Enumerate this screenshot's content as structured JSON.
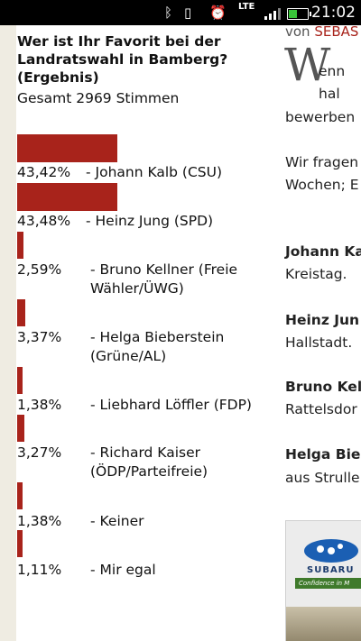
{
  "status_bar": {
    "time": "21:02",
    "network": "LTE",
    "icons": [
      "bluetooth-icon",
      "vibrate-icon",
      "alarm-icon",
      "lte-icon",
      "signal-icon",
      "battery-icon"
    ],
    "battery_color": "#3ac43a"
  },
  "poll": {
    "title": "Wer ist Ihr Favorit bei der Landratswahl in Bamberg? (Ergebnis)",
    "total": "Gesamt 2969 Stimmen",
    "bar_color": "#a8231b",
    "entries": [
      {
        "pct_text": "43,42%",
        "name": "- Johann Kalb (CSU)",
        "value": 43.42
      },
      {
        "pct_text": "43,48%",
        "name": "- Heinz Jung (SPD)",
        "value": 43.48
      },
      {
        "pct_text": "2,59%",
        "name": "- Bruno Kellner (Freie Wähler/ÜWG)",
        "value": 2.59
      },
      {
        "pct_text": "3,37%",
        "name": "- Helga Bieberstein (Grüne/AL)",
        "value": 3.37
      },
      {
        "pct_text": "1,38%",
        "name": "- Liebhard Löffler (FDP)",
        "value": 1.38
      },
      {
        "pct_text": "3,27%",
        "name": "- Richard Kaiser (ÖDP/Parteifreie)",
        "value": 3.27
      },
      {
        "pct_text": "1,38%",
        "name": "- Keiner",
        "value": 1.38
      },
      {
        "pct_text": "1,11%",
        "name": "- Mir egal",
        "value": 1.11
      }
    ]
  },
  "article": {
    "byline_prefix": "von",
    "byline_author": "SEBAS",
    "accent_color": "#a8231b",
    "dropcap": "W",
    "lines": [
      "enn",
      "hal",
      "bewerben",
      "Wir fragen",
      "Wochen; E"
    ],
    "candidates": [
      {
        "name": "Johann Ka",
        "text": "Kreistag."
      },
      {
        "name": "Heinz Jun",
        "text": "Hallstadt."
      },
      {
        "name": "Bruno Kell",
        "text": "Rattelsdor"
      },
      {
        "name": "Helga Biel",
        "text": "aus Strulle"
      }
    ],
    "ad": {
      "brand": "SUBARU",
      "slogan": "Confidence in M",
      "logo_icon": "subaru-logo-icon"
    }
  }
}
